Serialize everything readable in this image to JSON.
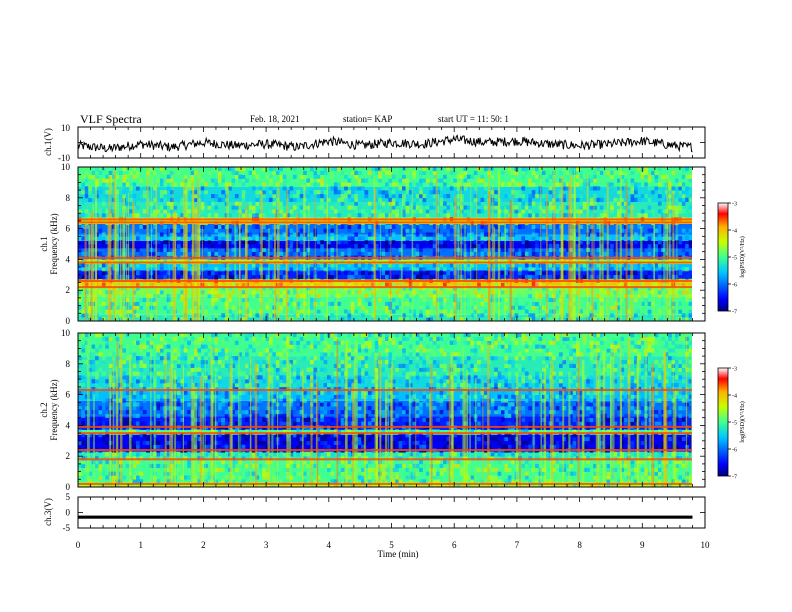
{
  "header": {
    "title": "VLF Spectra",
    "date": "Feb. 18, 2021",
    "station": "station= KAP",
    "start": "start  UT =   11: 50: 1"
  },
  "chart_data": [
    {
      "type": "line",
      "id": "ch1-waveform",
      "ylabel": "ch.1(V)",
      "ylim": [
        -10,
        10
      ],
      "yticks": [
        10,
        -10
      ],
      "xlim": [
        0,
        10
      ],
      "data_xrange": [
        0,
        9.8
      ],
      "x": [
        0.0,
        0.5,
        1.0,
        1.5,
        2.0,
        2.5,
        3.0,
        3.5,
        4.0,
        4.5,
        5.0,
        5.5,
        6.0,
        6.5,
        7.0,
        7.5,
        8.0,
        8.5,
        9.0,
        9.5,
        9.8
      ],
      "values": [
        -2,
        -4,
        -1,
        -3,
        0,
        -2,
        -1,
        -3,
        1,
        -2,
        0,
        -1,
        2,
        0,
        1,
        -1,
        -2,
        -1,
        1,
        -2,
        -3
      ]
    },
    {
      "type": "heatmap",
      "id": "ch1-spectrogram",
      "ylabel": "Frequency (kHz)",
      "channel_label": "ch.1",
      "ylim": [
        0,
        10
      ],
      "yticks": [
        0,
        2,
        4,
        6,
        8,
        10
      ],
      "xlim": [
        0,
        10
      ],
      "data_xrange": [
        0,
        9.8
      ],
      "colorbar": {
        "label": "log(PSD)(V²/Hz)",
        "range": [
          -7,
          -3
        ],
        "ticks": [
          -3,
          -4,
          -5,
          -6,
          -7
        ]
      },
      "bands": [
        {
          "f": [
            0.0,
            0.4
          ],
          "level": -5.2
        },
        {
          "f": [
            0.4,
            1.6
          ],
          "level": -5.0
        },
        {
          "f": [
            1.6,
            2.3
          ],
          "level": -4.8
        },
        {
          "f": [
            2.3,
            2.7
          ],
          "level": -4.0
        },
        {
          "f": [
            2.7,
            3.3
          ],
          "level": -6.4
        },
        {
          "f": [
            3.3,
            3.7
          ],
          "level": -5.6
        },
        {
          "f": [
            3.7,
            4.0
          ],
          "level": -4.6
        },
        {
          "f": [
            4.0,
            4.7
          ],
          "level": -6.0
        },
        {
          "f": [
            4.7,
            5.2
          ],
          "level": -6.6
        },
        {
          "f": [
            5.2,
            5.6
          ],
          "level": -5.6
        },
        {
          "f": [
            5.6,
            6.3
          ],
          "level": -6.0
        },
        {
          "f": [
            6.3,
            6.7
          ],
          "level": -4.2
        },
        {
          "f": [
            6.7,
            7.7
          ],
          "level": -5.2
        },
        {
          "f": [
            7.7,
            8.7
          ],
          "level": -5.4
        },
        {
          "f": [
            8.7,
            10.0
          ],
          "level": -5.0
        }
      ],
      "lines_kHz": [
        2.2,
        2.6,
        3.8,
        4.1,
        6.4,
        6.6
      ]
    },
    {
      "type": "heatmap",
      "id": "ch2-spectrogram",
      "ylabel": "Frequency (kHz)",
      "channel_label": "ch.2",
      "ylim": [
        0,
        10
      ],
      "yticks": [
        0,
        2,
        4,
        6,
        8,
        10
      ],
      "xlim": [
        0,
        10
      ],
      "data_xrange": [
        0,
        9.8
      ],
      "colorbar": {
        "label": "log(PSD)(V²/Hz)",
        "range": [
          -7,
          -3
        ],
        "ticks": [
          -3,
          -4,
          -5,
          -6,
          -7
        ]
      },
      "bands": [
        {
          "f": [
            0.0,
            0.3
          ],
          "level": -4.6
        },
        {
          "f": [
            0.3,
            1.7
          ],
          "level": -5.0
        },
        {
          "f": [
            1.7,
            2.3
          ],
          "level": -5.2
        },
        {
          "f": [
            2.3,
            3.4
          ],
          "level": -6.6
        },
        {
          "f": [
            3.4,
            3.7
          ],
          "level": -5.0
        },
        {
          "f": [
            3.7,
            4.6
          ],
          "level": -6.4
        },
        {
          "f": [
            4.6,
            5.6
          ],
          "level": -6.0
        },
        {
          "f": [
            5.6,
            6.4
          ],
          "level": -5.6
        },
        {
          "f": [
            6.4,
            7.2
          ],
          "level": -5.4
        },
        {
          "f": [
            7.2,
            8.5
          ],
          "level": -5.2
        },
        {
          "f": [
            8.5,
            10.0
          ],
          "level": -5.0
        }
      ],
      "lines_kHz": [
        0.2,
        1.8,
        2.4,
        3.5,
        3.9,
        6.3
      ]
    },
    {
      "type": "line",
      "id": "ch3-waveform",
      "ylabel": "ch.3(V)",
      "ylim": [
        -5,
        5
      ],
      "yticks": [
        5,
        0,
        -5
      ],
      "xlim": [
        0,
        10
      ],
      "data_xrange": [
        0,
        9.8
      ],
      "x": [
        0.0,
        9.8
      ],
      "values": [
        -1.5,
        -1.5
      ],
      "band_halfwidth": 0.5
    }
  ],
  "x_axis": {
    "label": "Time (min)",
    "ticks": [
      0,
      1,
      2,
      3,
      4,
      5,
      6,
      7,
      8,
      9,
      10
    ]
  }
}
